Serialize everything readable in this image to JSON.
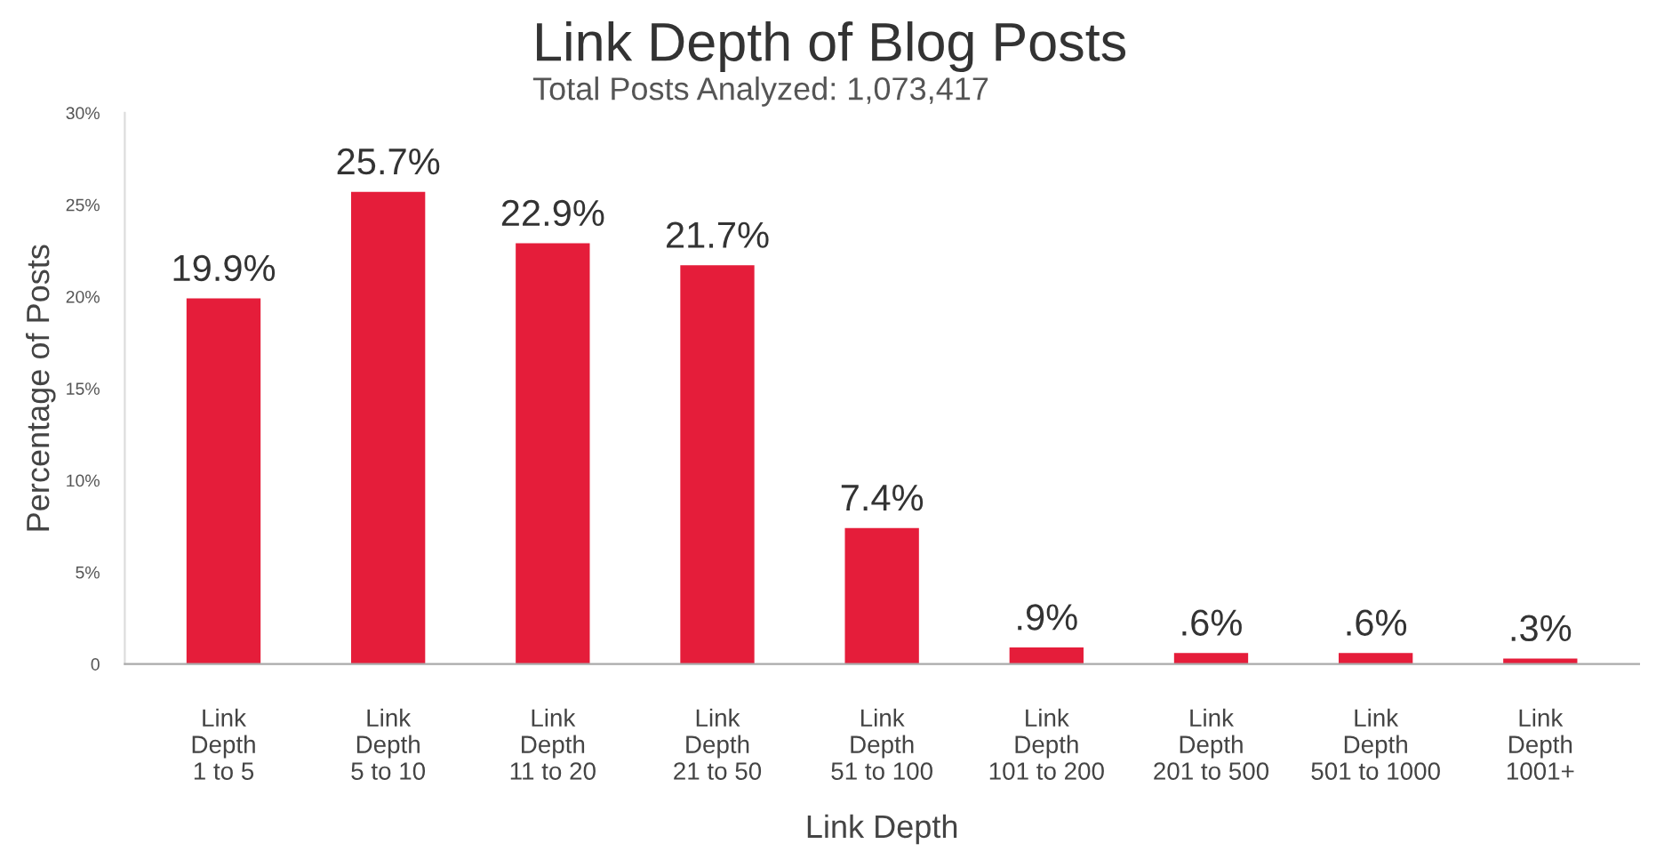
{
  "chart_data": {
    "type": "bar",
    "title": "Link Depth of Blog Posts",
    "subtitle": "Total Posts Analyzed: 1,073,417",
    "xlabel": "Link Depth",
    "ylabel": "Percentage of Posts",
    "categories": [
      "Link\nDepth\n1 to 5",
      "Link\nDepth\n5 to 10",
      "Link\nDepth\n11 to 20",
      "Link\nDepth\n21 to 50",
      "Link\nDepth\n51 to 100",
      "Link\nDepth\n101 to 200",
      "Link\nDepth\n201 to 500",
      "Link\nDepth\n501 to 1000",
      "Link\nDepth\n1001+"
    ],
    "values": [
      19.9,
      25.7,
      22.9,
      21.7,
      7.4,
      0.9,
      0.6,
      0.6,
      0.3
    ],
    "value_labels": [
      "19.9%",
      "25.7%",
      "22.9%",
      "21.7%",
      "7.4%",
      ".9%",
      ".6%",
      ".6%",
      ".3%"
    ],
    "color": "#e51d3a",
    "ylim": [
      0,
      30
    ],
    "yticks": [
      0,
      {
        "value": 5,
        "label": "5%"
      },
      {
        "value": 10,
        "label": "10%"
      },
      {
        "value": 15,
        "label": "15%"
      },
      {
        "value": 20,
        "label": "20%"
      },
      {
        "value": 25,
        "label": "25%"
      },
      {
        "value": 30,
        "label": "30%"
      }
    ],
    "grid": false
  }
}
